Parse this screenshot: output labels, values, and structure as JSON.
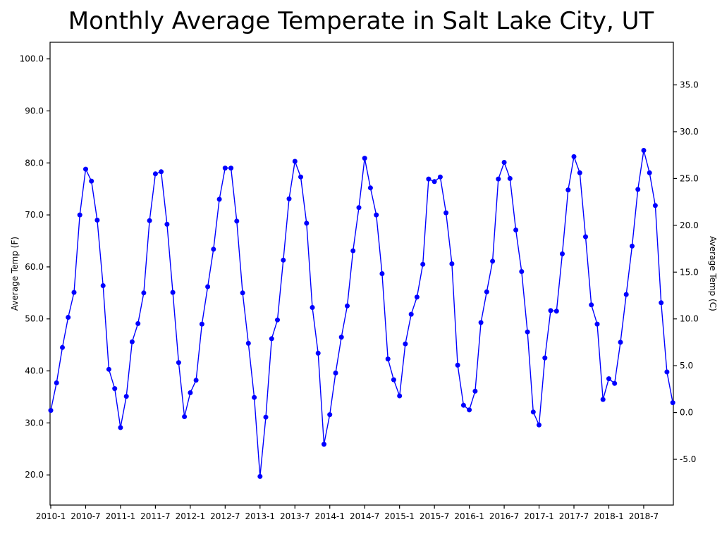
{
  "title": "Monthly Average Temperate in Salt Lake City, UT",
  "chart_data": {
    "type": "line",
    "title": "Monthly Average Temperate in Salt Lake City, UT",
    "xlabel": "",
    "ylabel_left": "Average Temp (F)",
    "ylabel_right": "Average Temp (C)",
    "legend": "none",
    "grid": false,
    "line_color": "#0000ff",
    "marker": "circle",
    "axis_color": "#000000",
    "x_tick_labels": [
      "2010-1",
      "2010-7",
      "2011-1",
      "2011-7",
      "2012-1",
      "2012-7",
      "2013-1",
      "2013-7",
      "2014-1",
      "2014-7",
      "2015-1",
      "2015-7",
      "2016-1",
      "2016-7",
      "2017-1",
      "2017-7",
      "2018-1",
      "2018-7"
    ],
    "x_tick_month_index": [
      0,
      6,
      12,
      18,
      24,
      30,
      36,
      42,
      48,
      54,
      60,
      66,
      72,
      78,
      84,
      90,
      96,
      102
    ],
    "y_tick_labels_f": [
      "20.0",
      "30.0",
      "40.0",
      "50.0",
      "60.0",
      "70.0",
      "80.0",
      "90.0",
      "100.0"
    ],
    "y_tick_labels_c": [
      "-5.0",
      "0.0",
      "5.0",
      "10.0",
      "15.0",
      "20.0",
      "25.0",
      "30.0",
      "35.0"
    ],
    "ylim_f": [
      14.2,
      103.2
    ],
    "xlim_month_index": [
      -0.12,
      107.1
    ],
    "series": [
      {
        "name": "Monthly Average Temp (F)",
        "months": [
          "2010-1",
          "2010-2",
          "2010-3",
          "2010-4",
          "2010-5",
          "2010-6",
          "2010-7",
          "2010-8",
          "2010-9",
          "2010-10",
          "2010-11",
          "2010-12",
          "2011-1",
          "2011-2",
          "2011-3",
          "2011-4",
          "2011-5",
          "2011-6",
          "2011-7",
          "2011-8",
          "2011-9",
          "2011-10",
          "2011-11",
          "2011-12",
          "2012-1",
          "2012-2",
          "2012-3",
          "2012-4",
          "2012-5",
          "2012-6",
          "2012-7",
          "2012-8",
          "2012-9",
          "2012-10",
          "2012-11",
          "2012-12",
          "2013-1",
          "2013-2",
          "2013-3",
          "2013-4",
          "2013-5",
          "2013-6",
          "2013-7",
          "2013-8",
          "2013-9",
          "2013-10",
          "2013-11",
          "2013-12",
          "2014-1",
          "2014-2",
          "2014-3",
          "2014-4",
          "2014-5",
          "2014-6",
          "2014-7",
          "2014-8",
          "2014-9",
          "2014-10",
          "2014-11",
          "2014-12",
          "2015-1",
          "2015-2",
          "2015-3",
          "2015-4",
          "2015-5",
          "2015-6",
          "2015-7",
          "2015-8",
          "2015-9",
          "2015-10",
          "2015-11",
          "2015-12",
          "2016-1",
          "2016-2",
          "2016-3",
          "2016-4",
          "2016-5",
          "2016-6",
          "2016-7",
          "2016-8",
          "2016-9",
          "2016-10",
          "2016-11",
          "2016-12",
          "2017-1",
          "2017-2",
          "2017-3",
          "2017-4",
          "2017-5",
          "2017-6",
          "2017-7",
          "2017-8",
          "2017-9",
          "2017-10",
          "2017-11",
          "2017-12",
          "2018-1",
          "2018-2",
          "2018-3",
          "2018-4",
          "2018-5",
          "2018-6",
          "2018-7",
          "2018-8",
          "2018-9",
          "2018-10",
          "2018-11",
          "2018-12"
        ],
        "values_f": [
          32.4,
          37.7,
          44.5,
          50.3,
          55.1,
          70.0,
          78.8,
          76.5,
          69.0,
          56.4,
          40.3,
          36.6,
          29.1,
          35.1,
          45.6,
          49.1,
          55.0,
          68.9,
          77.9,
          78.3,
          68.2,
          55.1,
          41.6,
          31.2,
          35.8,
          38.2,
          49.0,
          56.2,
          63.4,
          73.0,
          79.0,
          79.0,
          68.8,
          55.0,
          45.3,
          34.9,
          19.7,
          31.1,
          46.2,
          49.8,
          61.3,
          73.1,
          80.3,
          77.3,
          68.4,
          52.2,
          43.4,
          25.9,
          31.6,
          39.6,
          46.5,
          52.5,
          63.1,
          71.4,
          80.9,
          75.2,
          70.0,
          58.7,
          42.3,
          38.3,
          35.2,
          45.2,
          50.9,
          54.2,
          60.5,
          76.9,
          76.4,
          77.3,
          70.4,
          60.6,
          41.1,
          33.4,
          32.5,
          36.1,
          49.3,
          55.2,
          61.1,
          76.9,
          80.1,
          77.0,
          67.1,
          59.1,
          47.5,
          32.1,
          29.6,
          42.5,
          51.6,
          51.5,
          62.5,
          74.8,
          81.2,
          78.1,
          65.8,
          52.7,
          49.0,
          34.5,
          38.5,
          37.6,
          45.5,
          54.7,
          64.0,
          74.9,
          82.4,
          78.1,
          71.8,
          53.1,
          39.8,
          33.9
        ]
      }
    ]
  }
}
